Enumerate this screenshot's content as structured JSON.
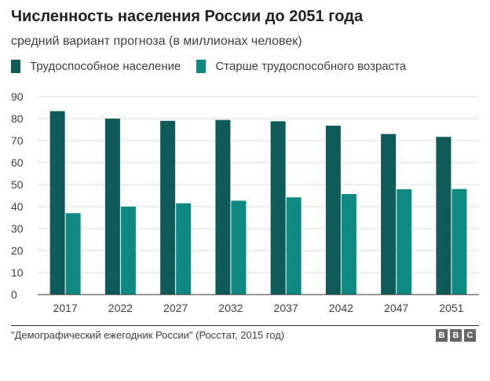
{
  "title": "Численность населения России до 2051 года",
  "subtitle": "средний вариант прогноза (в миллионах человек)",
  "source": "\"Демографический ежегодник России\" (Росстат, 2015 год)",
  "logo": [
    "B",
    "B",
    "C"
  ],
  "colors": {
    "working": "#0f5b59",
    "older": "#0e8a83",
    "grid": "#dddddd",
    "axis": "#333333"
  },
  "chart_data": {
    "type": "bar",
    "categories": [
      "2017",
      "2022",
      "2027",
      "2032",
      "2037",
      "2042",
      "2047",
      "2051"
    ],
    "series": [
      {
        "name": "Трудоспособное население",
        "values": [
          83.4,
          80,
          79,
          79.4,
          78.8,
          76.8,
          73,
          71.7
        ]
      },
      {
        "name": "Старше трудоспособного возраста",
        "values": [
          37,
          40,
          41.5,
          42.7,
          44.2,
          45.7,
          47.9,
          48
        ]
      }
    ],
    "ylim": [
      0,
      90
    ],
    "yticks": [
      0,
      10,
      20,
      30,
      40,
      50,
      60,
      70,
      80,
      90
    ],
    "grid": true,
    "legend_position": "top-left"
  }
}
